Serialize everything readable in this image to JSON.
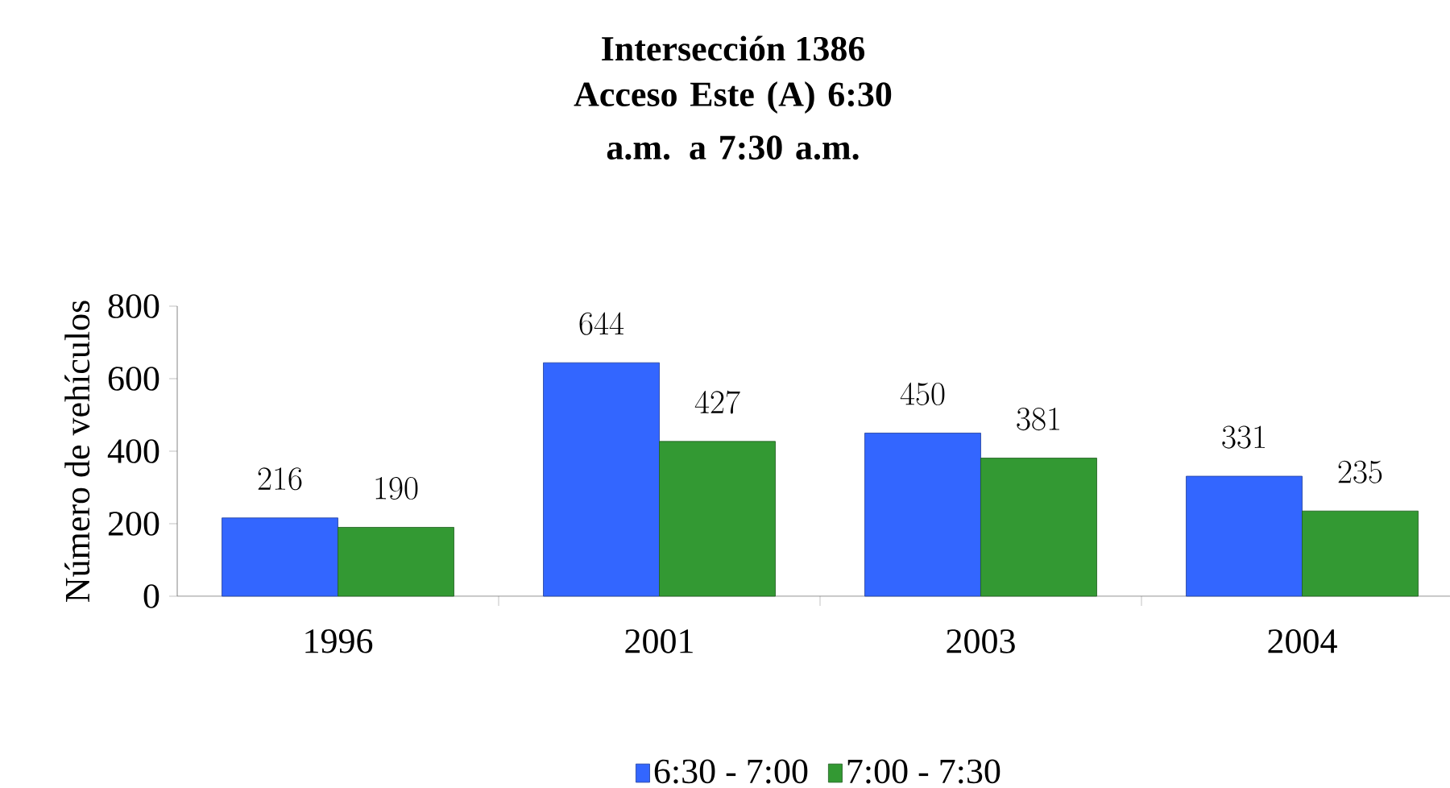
{
  "chart_data": {
    "type": "bar",
    "title": "Intersección 1386",
    "subtitle": "Acceso Este (A) 6:30 a.m. a 7:30 a.m.",
    "ylabel": "Número de vehículos",
    "categories": [
      "1996",
      "2001",
      "2003",
      "2004"
    ],
    "series": [
      {
        "name": "6:30 - 7:00",
        "color": "#3366ff",
        "values": [
          216,
          644,
          450,
          331
        ]
      },
      {
        "name": "7:00 - 7:30",
        "color": "#339933",
        "values": [
          190,
          427,
          381,
          235
        ]
      }
    ],
    "ylim": [
      0,
      800
    ],
    "yticks": [
      0,
      200,
      400,
      600,
      800
    ],
    "data_labels": true,
    "legend": "bottom",
    "grid": false
  }
}
